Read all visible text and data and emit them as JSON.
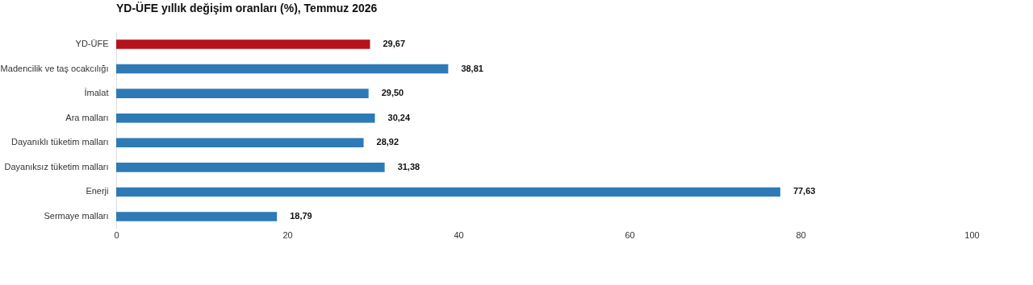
{
  "chart_data": {
    "type": "bar",
    "orientation": "horizontal",
    "title": "YD-ÜFE yıllık değişim oranları (%), Temmuz 2026",
    "categories": [
      "YD-ÜFE",
      "Madencilik ve taş ocakcılığı",
      "İmalat",
      "Ara malları",
      "Dayanıklı tüketim malları",
      "Dayanıksız tüketim malları",
      "Enerji",
      "Sermaye malları"
    ],
    "values": [
      29.67,
      38.81,
      29.5,
      30.24,
      28.92,
      31.38,
      77.63,
      18.79
    ],
    "value_labels": [
      "29,67",
      "38,81",
      "29,50",
      "30,24",
      "28,92",
      "31,38",
      "77,63",
      "18,79"
    ],
    "colors": [
      "#b5121b",
      "#2e7ab6",
      "#2e7ab6",
      "#2e7ab6",
      "#2e7ab6",
      "#2e7ab6",
      "#2e7ab6",
      "#2e7ab6"
    ],
    "xlim": [
      0,
      100
    ],
    "xticks": [
      0,
      20,
      40,
      60,
      80,
      100
    ],
    "grid": false
  }
}
